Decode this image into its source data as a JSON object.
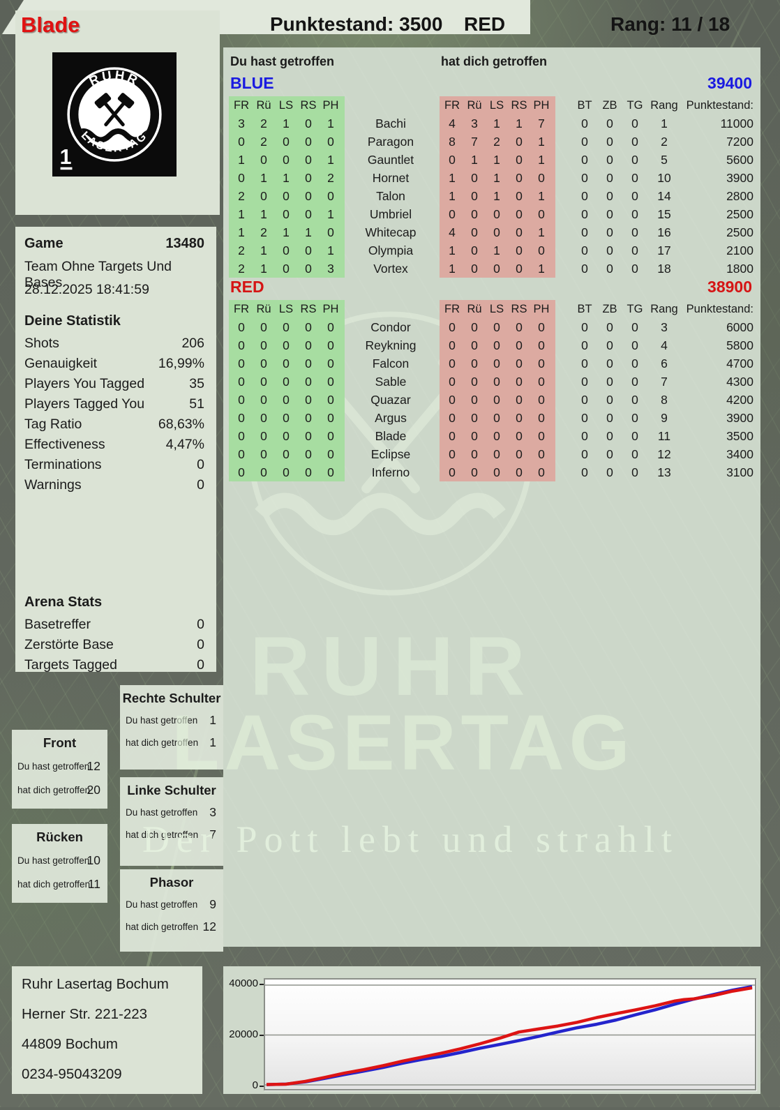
{
  "header": {
    "player_name": "Blade",
    "punktestand_label": "Punktestand: 3500",
    "team": "RED",
    "rang_label": "Rang: 11 / 18"
  },
  "logo": {
    "top_text": "RUHR",
    "bottom_text": "LASERTAG",
    "badge": "1"
  },
  "watermark": {
    "ruhr": "RUHR",
    "lasertag": "LASERTAG",
    "slogan": "Der Pott lebt und strahlt"
  },
  "game_info": {
    "label": "Game",
    "number": "13480",
    "mode": "Team Ohne Targets Und Bases",
    "datetime": "28.12.2025 18:41:59"
  },
  "player_stats": {
    "title": "Deine Statistik",
    "rows": [
      {
        "label": "Shots",
        "value": "206"
      },
      {
        "label": "Genauigkeit",
        "value": "16,99%"
      },
      {
        "label": "Players You Tagged",
        "value": "35"
      },
      {
        "label": "Players Tagged You",
        "value": "51"
      },
      {
        "label": "Tag Ratio",
        "value": "68,63%"
      },
      {
        "label": "Effectiveness",
        "value": "4,47%"
      },
      {
        "label": "Terminations",
        "value": "0"
      },
      {
        "label": "Warnings",
        "value": "0"
      }
    ]
  },
  "arena_stats": {
    "title": "Arena Stats",
    "rows": [
      {
        "label": "Basetreffer",
        "value": "0"
      },
      {
        "label": "Zerstörte Base",
        "value": "0"
      },
      {
        "label": "Targets Tagged",
        "value": "0"
      }
    ]
  },
  "hit_zones": {
    "boxes": [
      {
        "title": "Front",
        "you_label": "Du hast getroffen",
        "you": "12",
        "them_label": "hat dich getroffen",
        "them": "20"
      },
      {
        "title": "Rücken",
        "you_label": "Du hast getroffen",
        "you": "10",
        "them_label": "hat dich getroffen",
        "them": "11"
      },
      {
        "title": "Rechte Schulter",
        "you_label": "Du hast getroffen",
        "you": "1",
        "them_label": "hat dich getroffen",
        "them": "1"
      },
      {
        "title": "Linke Schulter",
        "you_label": "Du hast getroffen",
        "you": "3",
        "them_label": "hat dich getroffen",
        "them": "7"
      },
      {
        "title": "Phasor",
        "you_label": "Du hast getroffen",
        "you": "9",
        "them_label": "hat dich getroffen",
        "them": "12"
      }
    ]
  },
  "score_tables": {
    "du_header": "Du hast getroffen",
    "dich_header": "hat dich getroffen",
    "hit_cols": [
      "FR",
      "Rü",
      "LS",
      "RS",
      "PH"
    ],
    "extra_cols": [
      "BT",
      "ZB",
      "TG",
      "Rang",
      "Punktestand:"
    ],
    "teams": [
      {
        "name": "BLUE",
        "total": "39400",
        "color": "#1a1ae0",
        "rows": [
          {
            "you": [
              3,
              2,
              1,
              0,
              1
            ],
            "name": "Bachi",
            "them": [
              4,
              3,
              1,
              1,
              7
            ],
            "extra": [
              0,
              0,
              0
            ],
            "rang": "1",
            "points": "11000"
          },
          {
            "you": [
              0,
              2,
              0,
              0,
              0
            ],
            "name": "Paragon",
            "them": [
              8,
              7,
              2,
              0,
              1
            ],
            "extra": [
              0,
              0,
              0
            ],
            "rang": "2",
            "points": "7200"
          },
          {
            "you": [
              1,
              0,
              0,
              0,
              1
            ],
            "name": "Gauntlet",
            "them": [
              0,
              1,
              1,
              0,
              1
            ],
            "extra": [
              0,
              0,
              0
            ],
            "rang": "5",
            "points": "5600"
          },
          {
            "you": [
              0,
              1,
              1,
              0,
              2
            ],
            "name": "Hornet",
            "them": [
              1,
              0,
              1,
              0,
              0
            ],
            "extra": [
              0,
              0,
              0
            ],
            "rang": "10",
            "points": "3900"
          },
          {
            "you": [
              2,
              0,
              0,
              0,
              0
            ],
            "name": "Talon",
            "them": [
              1,
              0,
              1,
              0,
              1
            ],
            "extra": [
              0,
              0,
              0
            ],
            "rang": "14",
            "points": "2800"
          },
          {
            "you": [
              1,
              1,
              0,
              0,
              1
            ],
            "name": "Umbriel",
            "them": [
              0,
              0,
              0,
              0,
              0
            ],
            "extra": [
              0,
              0,
              0
            ],
            "rang": "15",
            "points": "2500"
          },
          {
            "you": [
              1,
              2,
              1,
              1,
              0
            ],
            "name": "Whitecap",
            "them": [
              4,
              0,
              0,
              0,
              1
            ],
            "extra": [
              0,
              0,
              0
            ],
            "rang": "16",
            "points": "2500"
          },
          {
            "you": [
              2,
              1,
              0,
              0,
              1
            ],
            "name": "Olympia",
            "them": [
              1,
              0,
              1,
              0,
              0
            ],
            "extra": [
              0,
              0,
              0
            ],
            "rang": "17",
            "points": "2100"
          },
          {
            "you": [
              2,
              1,
              0,
              0,
              3
            ],
            "name": "Vortex",
            "them": [
              1,
              0,
              0,
              0,
              1
            ],
            "extra": [
              0,
              0,
              0
            ],
            "rang": "18",
            "points": "1800"
          }
        ]
      },
      {
        "name": "RED",
        "total": "38900",
        "color": "#d51414",
        "rows": [
          {
            "you": [
              0,
              0,
              0,
              0,
              0
            ],
            "name": "Condor",
            "them": [
              0,
              0,
              0,
              0,
              0
            ],
            "extra": [
              0,
              0,
              0
            ],
            "rang": "3",
            "points": "6000"
          },
          {
            "you": [
              0,
              0,
              0,
              0,
              0
            ],
            "name": "Reykning",
            "them": [
              0,
              0,
              0,
              0,
              0
            ],
            "extra": [
              0,
              0,
              0
            ],
            "rang": "4",
            "points": "5800"
          },
          {
            "you": [
              0,
              0,
              0,
              0,
              0
            ],
            "name": "Falcon",
            "them": [
              0,
              0,
              0,
              0,
              0
            ],
            "extra": [
              0,
              0,
              0
            ],
            "rang": "6",
            "points": "4700"
          },
          {
            "you": [
              0,
              0,
              0,
              0,
              0
            ],
            "name": "Sable",
            "them": [
              0,
              0,
              0,
              0,
              0
            ],
            "extra": [
              0,
              0,
              0
            ],
            "rang": "7",
            "points": "4300"
          },
          {
            "you": [
              0,
              0,
              0,
              0,
              0
            ],
            "name": "Quazar",
            "them": [
              0,
              0,
              0,
              0,
              0
            ],
            "extra": [
              0,
              0,
              0
            ],
            "rang": "8",
            "points": "4200"
          },
          {
            "you": [
              0,
              0,
              0,
              0,
              0
            ],
            "name": "Argus",
            "them": [
              0,
              0,
              0,
              0,
              0
            ],
            "extra": [
              0,
              0,
              0
            ],
            "rang": "9",
            "points": "3900"
          },
          {
            "you": [
              0,
              0,
              0,
              0,
              0
            ],
            "name": "Blade",
            "them": [
              0,
              0,
              0,
              0,
              0
            ],
            "extra": [
              0,
              0,
              0
            ],
            "rang": "11",
            "points": "3500"
          },
          {
            "you": [
              0,
              0,
              0,
              0,
              0
            ],
            "name": "Eclipse",
            "them": [
              0,
              0,
              0,
              0,
              0
            ],
            "extra": [
              0,
              0,
              0
            ],
            "rang": "12",
            "points": "3400"
          },
          {
            "you": [
              0,
              0,
              0,
              0,
              0
            ],
            "name": "Inferno",
            "them": [
              0,
              0,
              0,
              0,
              0
            ],
            "extra": [
              0,
              0,
              0
            ],
            "rang": "13",
            "points": "3100"
          }
        ]
      }
    ]
  },
  "address": {
    "lines": [
      "Ruhr Lasertag Bochum",
      "Herner Str. 221-223",
      "44809 Bochum",
      "0234-95043209"
    ]
  },
  "chart_data": {
    "type": "line",
    "title": "",
    "xlabel": "",
    "ylabel": "",
    "ylim": [
      0,
      40000
    ],
    "yticks": [
      "40000",
      "20000",
      "0"
    ],
    "gridlines": [
      40000,
      20000,
      0
    ],
    "legend": "none",
    "series": [
      {
        "name": "BLUE team score",
        "color": "#2424cc",
        "points": [
          [
            0,
            100
          ],
          [
            0.04,
            300
          ],
          [
            0.08,
            1200
          ],
          [
            0.12,
            2600
          ],
          [
            0.16,
            4100
          ],
          [
            0.2,
            5500
          ],
          [
            0.24,
            7000
          ],
          [
            0.28,
            8700
          ],
          [
            0.32,
            10200
          ],
          [
            0.36,
            11400
          ],
          [
            0.4,
            13000
          ],
          [
            0.44,
            14700
          ],
          [
            0.48,
            16200
          ],
          [
            0.52,
            17800
          ],
          [
            0.56,
            19400
          ],
          [
            0.6,
            21200
          ],
          [
            0.64,
            22900
          ],
          [
            0.68,
            24300
          ],
          [
            0.72,
            26000
          ],
          [
            0.76,
            28100
          ],
          [
            0.8,
            30100
          ],
          [
            0.84,
            32300
          ],
          [
            0.88,
            34400
          ],
          [
            0.92,
            36200
          ],
          [
            0.96,
            38000
          ],
          [
            1,
            39400
          ]
        ]
      },
      {
        "name": "RED team score",
        "color": "#dd1414",
        "points": [
          [
            0,
            150
          ],
          [
            0.04,
            280
          ],
          [
            0.08,
            1400
          ],
          [
            0.12,
            3000
          ],
          [
            0.16,
            4700
          ],
          [
            0.2,
            6100
          ],
          [
            0.24,
            7700
          ],
          [
            0.28,
            9500
          ],
          [
            0.32,
            11100
          ],
          [
            0.36,
            12700
          ],
          [
            0.4,
            14500
          ],
          [
            0.44,
            16500
          ],
          [
            0.48,
            18700
          ],
          [
            0.52,
            21200
          ],
          [
            0.56,
            22400
          ],
          [
            0.6,
            23600
          ],
          [
            0.64,
            25100
          ],
          [
            0.68,
            27000
          ],
          [
            0.72,
            28600
          ],
          [
            0.76,
            30100
          ],
          [
            0.8,
            31700
          ],
          [
            0.84,
            33600
          ],
          [
            0.86,
            34200
          ],
          [
            0.88,
            34500
          ],
          [
            0.92,
            35800
          ],
          [
            0.96,
            37600
          ],
          [
            1,
            38900
          ]
        ]
      }
    ]
  }
}
